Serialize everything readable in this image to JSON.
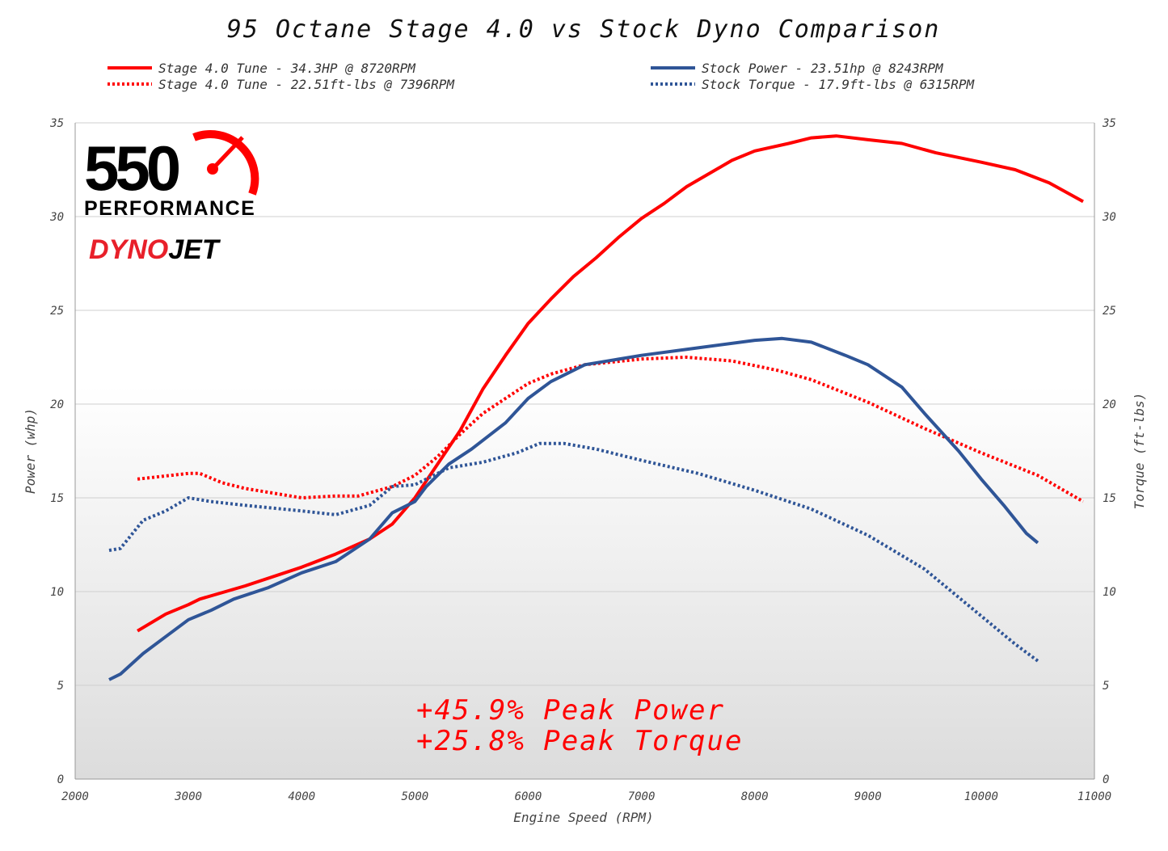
{
  "chart_data": {
    "type": "line",
    "title": "95 Octane Stage 4.0 vs Stock Dyno Comparison",
    "xlabel": "Engine Speed (RPM)",
    "ylabel": "Power (whp)",
    "y2label": "Torque (ft-lbs)",
    "xlim": [
      2000,
      11000
    ],
    "ylim": [
      0,
      35
    ],
    "y2lim": [
      0,
      35
    ],
    "xticks": [
      2000,
      3000,
      4000,
      5000,
      6000,
      7000,
      8000,
      9000,
      10000,
      11000
    ],
    "yticks": [
      0,
      5,
      10,
      15,
      20,
      25,
      30,
      35
    ],
    "grid": true,
    "legend_position": "top",
    "annotations": [
      "+45.9% Peak Power",
      "+25.8% Peak Torque"
    ],
    "logos": [
      "550 PERFORMANCE",
      "DYNOJET"
    ],
    "series": [
      {
        "name": "Stage 4.0 Tune - 34.3HP @ 8720RPM",
        "color": "#ff0000",
        "style": "solid",
        "x": [
          2550,
          2800,
          3000,
          3100,
          3500,
          4000,
          4300,
          4600,
          4800,
          5000,
          5200,
          5400,
          5600,
          5800,
          6000,
          6200,
          6400,
          6600,
          6800,
          7000,
          7200,
          7400,
          7600,
          7800,
          8000,
          8300,
          8500,
          8720,
          9000,
          9300,
          9600,
          10000,
          10300,
          10600,
          10900
        ],
        "y": [
          7.9,
          8.8,
          9.3,
          9.6,
          10.3,
          11.3,
          12.0,
          12.8,
          13.6,
          15.0,
          16.8,
          18.6,
          20.8,
          22.6,
          24.3,
          25.6,
          26.8,
          27.8,
          28.9,
          29.9,
          30.7,
          31.6,
          32.3,
          33.0,
          33.5,
          33.9,
          34.2,
          34.3,
          34.1,
          33.9,
          33.4,
          32.9,
          32.5,
          31.8,
          30.8
        ]
      },
      {
        "name": "Stage 4.0 Tune - 22.51ft-lbs @ 7396RPM",
        "color": "#ff0000",
        "style": "dotted",
        "x": [
          2550,
          3000,
          3100,
          3300,
          3500,
          4000,
          4300,
          4500,
          4800,
          5000,
          5200,
          5400,
          5600,
          5800,
          6000,
          6200,
          6500,
          7000,
          7396,
          7800,
          8200,
          8500,
          9000,
          9500,
          10000,
          10500,
          10900
        ],
        "y": [
          16.0,
          16.3,
          16.3,
          15.8,
          15.5,
          15.0,
          15.1,
          15.1,
          15.6,
          16.2,
          17.2,
          18.4,
          19.5,
          20.3,
          21.1,
          21.6,
          22.1,
          22.4,
          22.5,
          22.3,
          21.8,
          21.3,
          20.1,
          18.7,
          17.4,
          16.2,
          14.8
        ]
      },
      {
        "name": "Stock Power - 23.51hp @ 8243RPM",
        "color": "#2f5597",
        "style": "solid",
        "x": [
          2300,
          2400,
          2600,
          2800,
          3000,
          3200,
          3400,
          3700,
          4000,
          4300,
          4600,
          4800,
          5000,
          5100,
          5300,
          5500,
          5800,
          6000,
          6200,
          6500,
          7000,
          7500,
          8000,
          8243,
          8500,
          8800,
          9000,
          9300,
          9500,
          9800,
          10000,
          10200,
          10400,
          10500
        ],
        "y": [
          5.3,
          5.6,
          6.7,
          7.6,
          8.5,
          9.0,
          9.6,
          10.2,
          11.0,
          11.6,
          12.8,
          14.2,
          14.8,
          15.6,
          16.8,
          17.6,
          19.0,
          20.3,
          21.2,
          22.1,
          22.6,
          23.0,
          23.4,
          23.5,
          23.3,
          22.6,
          22.1,
          20.9,
          19.5,
          17.5,
          16.0,
          14.6,
          13.1,
          12.6
        ]
      },
      {
        "name": "Stock Torque - 17.9ft-lbs @ 6315RPM",
        "color": "#2f5597",
        "style": "dotted",
        "x": [
          2300,
          2400,
          2600,
          2800,
          3000,
          3200,
          3500,
          4000,
          4300,
          4600,
          4800,
          5000,
          5300,
          5600,
          5900,
          6100,
          6315,
          6600,
          7000,
          7500,
          8000,
          8500,
          9000,
          9500,
          10000,
          10300,
          10500
        ],
        "y": [
          12.2,
          12.3,
          13.8,
          14.3,
          15.0,
          14.8,
          14.6,
          14.3,
          14.1,
          14.6,
          15.6,
          15.7,
          16.6,
          16.9,
          17.4,
          17.9,
          17.9,
          17.6,
          17.0,
          16.3,
          15.4,
          14.4,
          13.0,
          11.2,
          8.7,
          7.2,
          6.3
        ]
      }
    ]
  }
}
